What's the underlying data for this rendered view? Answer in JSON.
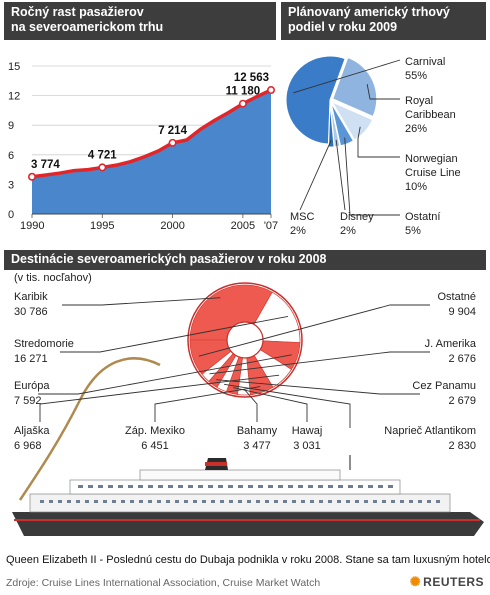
{
  "growth": {
    "title1": "Ročný rast pasažierov",
    "title2": "na severoamerickom trhu",
    "colors": {
      "area": "#4a86cc",
      "line": "#e0262b",
      "marker": "#ffffff"
    }
  },
  "share": {
    "title1": "Plánovaný americký trhový",
    "title2": "podiel v roku 2009"
  },
  "dest": {
    "title": "Destinácie severoamerických pasažierov v roku 2008",
    "unit": "(v tis. nocľahov)"
  },
  "footer": {
    "caption": "Queen Elizabeth II - Poslednú cestu do Dubaja podnikla v roku 2008. Stane sa tam luxusným hotelom.",
    "source": "Zdroje: Cruise Lines International Association, Cruise Market Watch",
    "brand": "REUTERS"
  },
  "chart_data": [
    {
      "type": "area",
      "x": [
        1990,
        1991,
        1992,
        1993,
        1994,
        1995,
        1996,
        1997,
        1998,
        1999,
        2000,
        2001,
        2002,
        2003,
        2004,
        2005,
        2006,
        2007
      ],
      "series": [
        {
          "values": [
            3.774,
            3.95,
            4.15,
            4.4,
            4.5,
            4.721,
            4.95,
            5.3,
            5.8,
            6.4,
            7.214,
            7.5,
            8.6,
            9.5,
            10.3,
            11.18,
            11.9,
            12.563
          ]
        }
      ],
      "labeled_points": [
        {
          "x": 1990,
          "label": "3 774"
        },
        {
          "x": 1995,
          "label": "4 721"
        },
        {
          "x": 2000,
          "label": "7 214"
        },
        {
          "x": 2005,
          "label": "11 180"
        },
        {
          "x": 2007,
          "label": "12 563"
        }
      ],
      "xticks": [
        "1990",
        "1995",
        "2000",
        "2005",
        "'07"
      ],
      "xtick_values": [
        1990,
        1995,
        2000,
        2005,
        2007
      ],
      "yticks": [
        "0",
        "3",
        "6",
        "9",
        "12",
        "15"
      ],
      "ytick_values": [
        0,
        3,
        6,
        9,
        12,
        15
      ],
      "xlim": [
        1990,
        2007
      ],
      "ylim": [
        0,
        15
      ],
      "grid": true
    },
    {
      "type": "pie",
      "slices": [
        {
          "label": "Carnival",
          "pct_label": "55%",
          "value": 55,
          "color": "#3a7cc8"
        },
        {
          "label": "Royal Caribbean",
          "label_lines": [
            "Royal",
            "Caribbean"
          ],
          "pct_label": "26%",
          "value": 26,
          "color": "#8fb4e0"
        },
        {
          "label": "Norwegian Cruise Line",
          "label_lines": [
            "Norwegian",
            "Cruise Line"
          ],
          "pct_label": "10%",
          "value": 10,
          "color": "#cfe0f3"
        },
        {
          "label": "Ostatní",
          "pct_label": "5%",
          "value": 5,
          "color": "#5a96d6"
        },
        {
          "label": "Disney",
          "pct_label": "2%",
          "value": 2,
          "color": "#a9c8ea"
        },
        {
          "label": "MSC",
          "pct_label": "2%",
          "value": 2,
          "color": "#2f6fb6"
        }
      ]
    },
    {
      "type": "pie",
      "slices": [
        {
          "label": "Karibik",
          "value": 30786,
          "value_label": "30 786",
          "color": "#ee5a4f"
        },
        {
          "label": "Stredomorie",
          "value": 16271,
          "value_label": "16 271",
          "color": "#ffffff"
        },
        {
          "label": "Európa",
          "value": 7592,
          "value_label": "7 592",
          "color": "#ee5a4f"
        },
        {
          "label": "Aljaška",
          "value": 6968,
          "value_label": "6 968",
          "color": "#ffffff"
        },
        {
          "label": "Záp. Mexiko",
          "value": 6451,
          "value_label": "6 451",
          "color": "#ee5a4f"
        },
        {
          "label": "Bahamy",
          "value": 3477,
          "value_label": "3 477",
          "color": "#ffffff"
        },
        {
          "label": "Hawaj",
          "value": 3031,
          "value_label": "3 031",
          "color": "#ee5a4f"
        },
        {
          "label": "Naprieč Atlantikom",
          "value": 2830,
          "value_label": "2 830",
          "color": "#ffffff"
        },
        {
          "label": "Cez Panamu",
          "value": 2679,
          "value_label": "2 679",
          "color": "#ee5a4f"
        },
        {
          "label": "J. Amerika",
          "value": 2676,
          "value_label": "2 676",
          "color": "#ffffff"
        },
        {
          "label": "Ostatné",
          "value": 9904,
          "value_label": "9 904",
          "color": "#ee5a4f"
        }
      ]
    }
  ]
}
